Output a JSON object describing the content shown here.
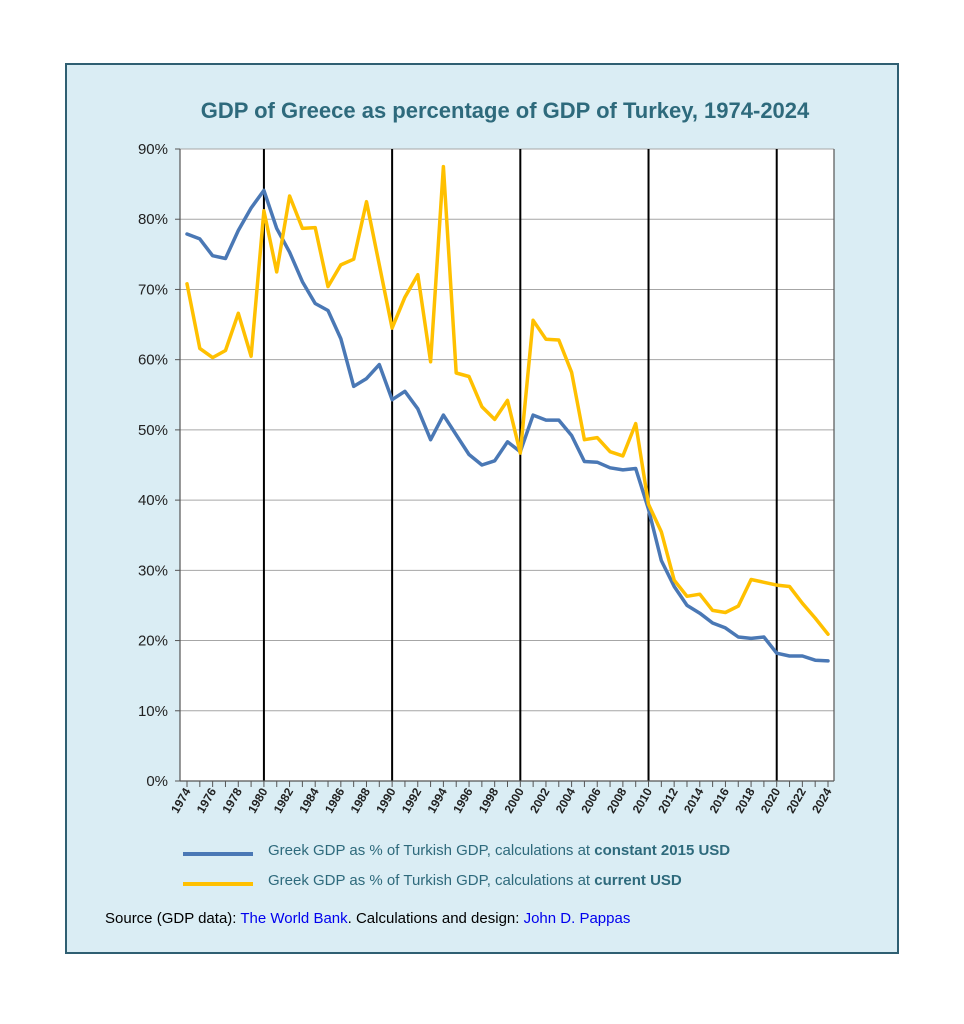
{
  "chart_data": {
    "type": "line",
    "title": "GDP of Greece as percentage of GDP of Turkey, 1974-2024",
    "xlim": [
      1974,
      2024
    ],
    "ylim": [
      0,
      90
    ],
    "yticks": [
      "0%",
      "10%",
      "20%",
      "30%",
      "40%",
      "50%",
      "60%",
      "70%",
      "80%",
      "90%"
    ],
    "xticks": [
      "1974",
      "1976",
      "1978",
      "1980",
      "1982",
      "1984",
      "1986",
      "1988",
      "1990",
      "1992",
      "1994",
      "1996",
      "1998",
      "2000",
      "2002",
      "2004",
      "2006",
      "2008",
      "2010",
      "2012",
      "2014",
      "2016",
      "2018",
      "2020",
      "2022",
      "2024"
    ],
    "decade_lines": [
      1980,
      1990,
      2000,
      2010,
      2020
    ],
    "grid": "horizontal",
    "legend_position": "bottom",
    "x": [
      1974,
      1975,
      1976,
      1977,
      1978,
      1979,
      1980,
      1981,
      1982,
      1983,
      1984,
      1985,
      1986,
      1987,
      1988,
      1989,
      1990,
      1991,
      1992,
      1993,
      1994,
      1995,
      1996,
      1997,
      1998,
      1999,
      2000,
      2001,
      2002,
      2003,
      2004,
      2005,
      2006,
      2007,
      2008,
      2009,
      2010,
      2011,
      2012,
      2013,
      2014,
      2015,
      2016,
      2017,
      2018,
      2019,
      2020,
      2021,
      2022,
      2023,
      2024
    ],
    "series": [
      {
        "name_prefix": "Greek GDP as % of Turkish GDP, calculations at ",
        "name_bold": "constant 2015 USD",
        "color": "#4a78b5",
        "values": [
          77.9,
          77.2,
          74.8,
          74.4,
          78.4,
          81.6,
          84.1,
          78.7,
          75.3,
          71.1,
          68.0,
          67.0,
          63.0,
          56.2,
          57.3,
          59.3,
          54.3,
          55.5,
          53.0,
          48.6,
          52.1,
          49.3,
          46.5,
          45.0,
          45.6,
          48.3,
          46.9,
          52.1,
          51.4,
          51.4,
          49.2,
          45.5,
          45.4,
          44.6,
          44.3,
          44.5,
          38.7,
          31.4,
          27.7,
          25.0,
          23.9,
          22.5,
          21.8,
          20.5,
          20.3,
          20.5,
          18.2,
          17.8,
          17.8,
          17.2,
          17.1
        ]
      },
      {
        "name_prefix": "Greek GDP as % of Turkish GDP, calculations at ",
        "name_bold": "current USD",
        "color": "#ffc000",
        "values": [
          70.8,
          61.6,
          60.3,
          61.3,
          66.6,
          60.5,
          81.2,
          72.5,
          83.3,
          78.7,
          78.8,
          70.4,
          73.5,
          74.3,
          82.5,
          73.5,
          64.5,
          68.9,
          72.1,
          59.7,
          87.5,
          58.1,
          57.6,
          53.3,
          51.5,
          54.2,
          46.7,
          65.6,
          62.9,
          62.8,
          58.2,
          48.6,
          48.9,
          46.9,
          46.3,
          50.9,
          39.4,
          35.5,
          28.6,
          26.3,
          26.6,
          24.3,
          24.0,
          24.9,
          28.7,
          28.3,
          27.9,
          27.7,
          25.3,
          23.2,
          20.9
        ]
      }
    ]
  },
  "source": {
    "prefix": "Source (GDP data): ",
    "data_link": "The World Bank",
    "middle": ". Calculations and design: ",
    "author_link": "John D. Pappas"
  }
}
